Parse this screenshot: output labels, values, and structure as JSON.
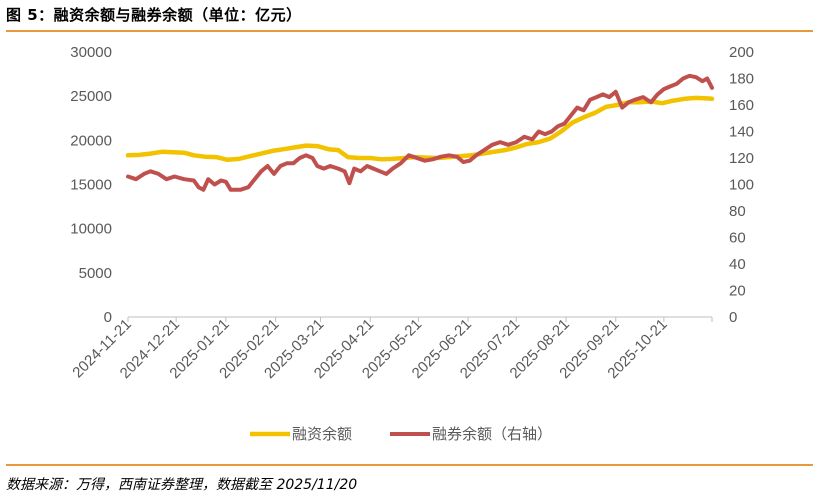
{
  "figure": {
    "title": "图 5：融资余额与融券余额（单位：亿元）",
    "source": "数据来源：万得，西南证券整理，数据截至 2025/11/20"
  },
  "colors": {
    "financing": "#f2c200",
    "lending": "#c0504d",
    "accent_rule": "#e69a3c"
  },
  "chart_data": {
    "type": "line",
    "title": "",
    "grid": false,
    "legend_position": "bottom",
    "x_tick_labels": [
      "2024-11-21",
      "2024-12-21",
      "2025-01-21",
      "2025-02-21",
      "2025-03-21",
      "2025-04-21",
      "2025-05-21",
      "2025-06-21",
      "2025-07-21",
      "2025-08-21",
      "2025-09-21",
      "2025-10-21"
    ],
    "x_range": [
      "2024-11-21",
      "2025-11-20"
    ],
    "y_left": {
      "min": 0,
      "max": 30000,
      "ticks": [
        0,
        5000,
        10000,
        15000,
        20000,
        25000,
        30000
      ]
    },
    "y_right": {
      "min": 0,
      "max": 200,
      "ticks": [
        0,
        20,
        40,
        60,
        80,
        100,
        120,
        140,
        160,
        180,
        200
      ]
    },
    "series": [
      {
        "name": "融资余额",
        "axis": "left",
        "points": [
          [
            "2024-11-21",
            18300
          ],
          [
            "2024-11-28",
            18350
          ],
          [
            "2024-12-05",
            18500
          ],
          [
            "2024-12-12",
            18700
          ],
          [
            "2024-12-19",
            18650
          ],
          [
            "2024-12-26",
            18600
          ],
          [
            "2025-01-01",
            18300
          ],
          [
            "2025-01-08",
            18150
          ],
          [
            "2025-01-15",
            18100
          ],
          [
            "2025-01-22",
            17800
          ],
          [
            "2025-01-29",
            17900
          ],
          [
            "2025-02-05",
            18200
          ],
          [
            "2025-02-12",
            18500
          ],
          [
            "2025-02-19",
            18800
          ],
          [
            "2025-02-26",
            19000
          ],
          [
            "2025-03-05",
            19200
          ],
          [
            "2025-03-12",
            19400
          ],
          [
            "2025-03-19",
            19350
          ],
          [
            "2025-03-26",
            19000
          ],
          [
            "2025-04-01",
            18900
          ],
          [
            "2025-04-07",
            18100
          ],
          [
            "2025-04-14",
            18000
          ],
          [
            "2025-04-21",
            18000
          ],
          [
            "2025-04-28",
            17850
          ],
          [
            "2025-05-05",
            17900
          ],
          [
            "2025-05-12",
            18000
          ],
          [
            "2025-05-19",
            18100
          ],
          [
            "2025-05-26",
            18050
          ],
          [
            "2025-06-02",
            18000
          ],
          [
            "2025-06-09",
            18100
          ],
          [
            "2025-06-16",
            18200
          ],
          [
            "2025-06-23",
            18300
          ],
          [
            "2025-06-30",
            18500
          ],
          [
            "2025-07-07",
            18700
          ],
          [
            "2025-07-14",
            18900
          ],
          [
            "2025-07-21",
            19200
          ],
          [
            "2025-07-28",
            19600
          ],
          [
            "2025-08-04",
            19800
          ],
          [
            "2025-08-11",
            20200
          ],
          [
            "2025-08-18",
            21000
          ],
          [
            "2025-08-25",
            22000
          ],
          [
            "2025-09-01",
            22600
          ],
          [
            "2025-09-08",
            23100
          ],
          [
            "2025-09-15",
            23800
          ],
          [
            "2025-09-22",
            24000
          ],
          [
            "2025-09-29",
            24300
          ],
          [
            "2025-10-06",
            24300
          ],
          [
            "2025-10-13",
            24400
          ],
          [
            "2025-10-20",
            24200
          ],
          [
            "2025-10-27",
            24500
          ],
          [
            "2025-11-03",
            24700
          ],
          [
            "2025-11-10",
            24800
          ],
          [
            "2025-11-17",
            24750
          ],
          [
            "2025-11-20",
            24700
          ]
        ]
      },
      {
        "name": "融券余额（右轴）",
        "axis": "right",
        "points": [
          [
            "2024-11-21",
            106
          ],
          [
            "2024-11-26",
            104
          ],
          [
            "2024-12-01",
            108
          ],
          [
            "2024-12-05",
            110
          ],
          [
            "2024-12-10",
            108
          ],
          [
            "2024-12-15",
            104
          ],
          [
            "2024-12-20",
            106
          ],
          [
            "2024-12-26",
            104
          ],
          [
            "2025-01-01",
            103
          ],
          [
            "2025-01-04",
            98
          ],
          [
            "2025-01-07",
            96
          ],
          [
            "2025-01-10",
            104
          ],
          [
            "2025-01-14",
            100
          ],
          [
            "2025-01-18",
            103
          ],
          [
            "2025-01-21",
            102
          ],
          [
            "2025-01-24",
            96
          ],
          [
            "2025-01-30",
            96
          ],
          [
            "2025-02-04",
            98
          ],
          [
            "2025-02-08",
            104
          ],
          [
            "2025-02-12",
            110
          ],
          [
            "2025-02-16",
            114
          ],
          [
            "2025-02-20",
            108
          ],
          [
            "2025-02-24",
            114
          ],
          [
            "2025-02-28",
            116
          ],
          [
            "2025-03-04",
            116
          ],
          [
            "2025-03-08",
            120
          ],
          [
            "2025-03-12",
            122
          ],
          [
            "2025-03-16",
            120
          ],
          [
            "2025-03-19",
            114
          ],
          [
            "2025-03-23",
            112
          ],
          [
            "2025-03-27",
            114
          ],
          [
            "2025-04-01",
            112
          ],
          [
            "2025-04-05",
            110
          ],
          [
            "2025-04-08",
            101
          ],
          [
            "2025-04-11",
            112
          ],
          [
            "2025-04-15",
            110
          ],
          [
            "2025-04-19",
            114
          ],
          [
            "2025-04-23",
            112
          ],
          [
            "2025-04-27",
            110
          ],
          [
            "2025-05-01",
            108
          ],
          [
            "2025-05-05",
            112
          ],
          [
            "2025-05-10",
            116
          ],
          [
            "2025-05-15",
            122
          ],
          [
            "2025-05-20",
            120
          ],
          [
            "2025-05-25",
            118
          ],
          [
            "2025-05-30",
            119
          ],
          [
            "2025-06-04",
            121
          ],
          [
            "2025-06-09",
            122
          ],
          [
            "2025-06-14",
            121
          ],
          [
            "2025-06-18",
            117
          ],
          [
            "2025-06-22",
            118
          ],
          [
            "2025-06-26",
            122
          ],
          [
            "2025-07-01",
            126
          ],
          [
            "2025-07-06",
            130
          ],
          [
            "2025-07-11",
            132
          ],
          [
            "2025-07-16",
            130
          ],
          [
            "2025-07-21",
            132
          ],
          [
            "2025-07-26",
            136
          ],
          [
            "2025-07-31",
            134
          ],
          [
            "2025-08-04",
            140
          ],
          [
            "2025-08-08",
            138
          ],
          [
            "2025-08-12",
            140
          ],
          [
            "2025-08-16",
            144
          ],
          [
            "2025-08-20",
            146
          ],
          [
            "2025-08-24",
            152
          ],
          [
            "2025-08-28",
            158
          ],
          [
            "2025-09-01",
            156
          ],
          [
            "2025-09-05",
            164
          ],
          [
            "2025-09-09",
            166
          ],
          [
            "2025-09-13",
            168
          ],
          [
            "2025-09-17",
            166
          ],
          [
            "2025-09-21",
            170
          ],
          [
            "2025-09-25",
            158
          ],
          [
            "2025-09-29",
            162
          ],
          [
            "2025-10-03",
            164
          ],
          [
            "2025-10-08",
            166
          ],
          [
            "2025-10-13",
            162
          ],
          [
            "2025-10-17",
            168
          ],
          [
            "2025-10-21",
            172
          ],
          [
            "2025-10-25",
            174
          ],
          [
            "2025-10-29",
            176
          ],
          [
            "2025-11-02",
            180
          ],
          [
            "2025-11-06",
            182
          ],
          [
            "2025-11-10",
            181
          ],
          [
            "2025-11-14",
            178
          ],
          [
            "2025-11-17",
            180
          ],
          [
            "2025-11-20",
            173
          ]
        ]
      }
    ]
  }
}
